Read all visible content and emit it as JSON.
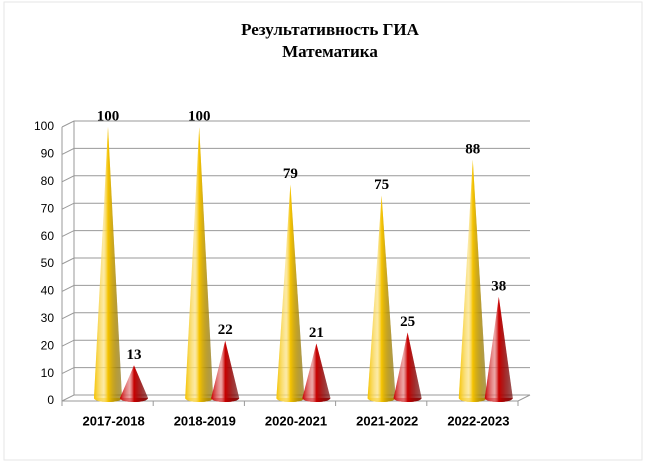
{
  "chart_data": {
    "type": "cone",
    "title": "Результативность  ГИА",
    "subtitle": "Математика",
    "categories": [
      "2017-2018",
      "2018-2019",
      "2020-2021",
      "2021-2022",
      "2022-2023"
    ],
    "series": [
      {
        "color": "#f5c400",
        "values": [
          100,
          100,
          79,
          75,
          88
        ]
      },
      {
        "color": "#c80000",
        "values": [
          13,
          22,
          21,
          25,
          38
        ]
      }
    ],
    "ylim": [
      0,
      100
    ],
    "yticks": [
      0,
      10,
      20,
      30,
      40,
      50,
      60,
      70,
      80,
      90,
      100
    ],
    "grid": true
  }
}
